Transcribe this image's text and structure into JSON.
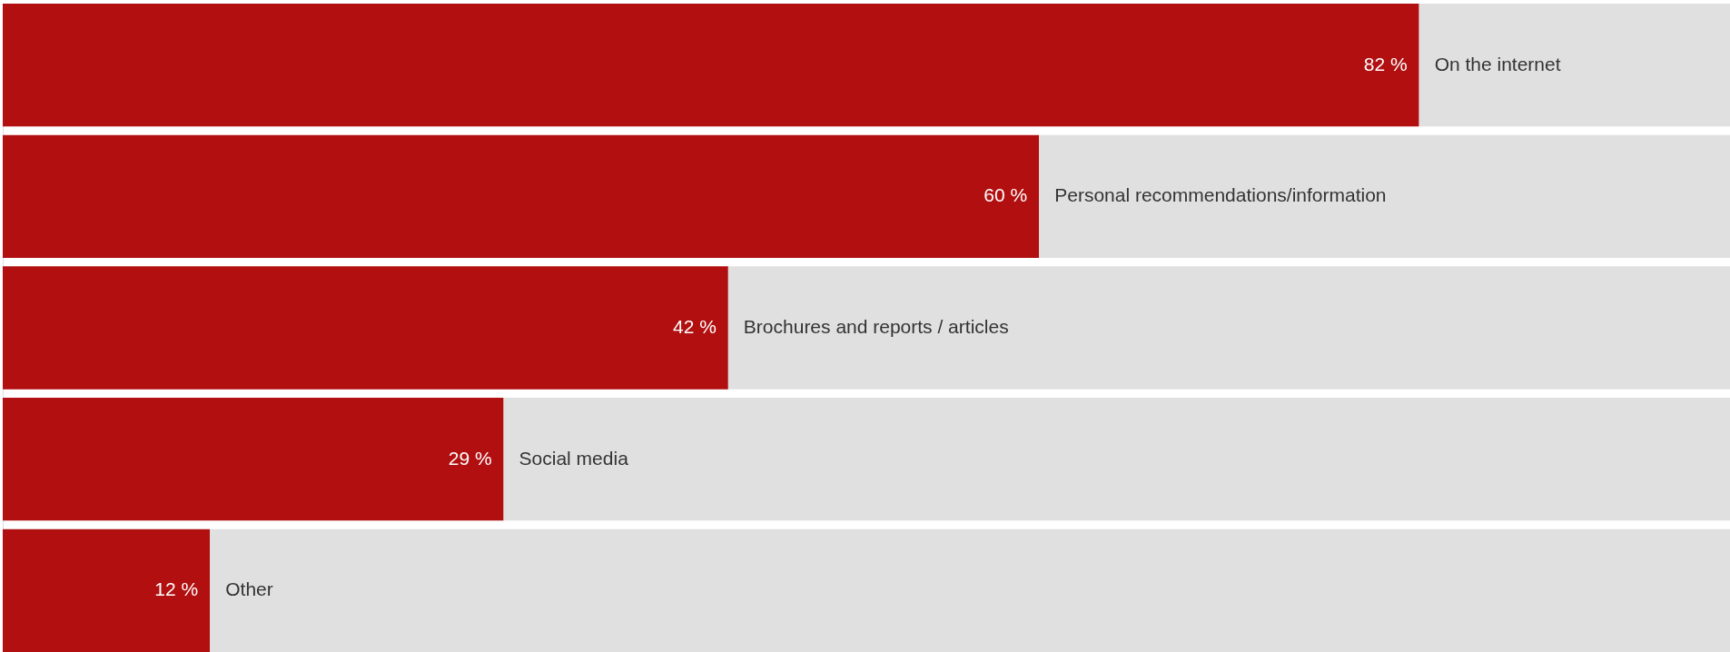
{
  "chart_data": {
    "type": "bar",
    "orientation": "horizontal",
    "stacked": true,
    "xlim": [
      0,
      100
    ],
    "tick_labels": false,
    "categories": [
      "On the internet",
      "Personal recommendations/information",
      "Brochures and reports / articles",
      "Social media",
      "Other"
    ],
    "series": [
      {
        "color": "#b10f10",
        "values": [
          82,
          60,
          42,
          29,
          12
        ],
        "value_labels": [
          "82 %",
          "60 %",
          "42 %",
          "29 %",
          "12 %"
        ]
      },
      {
        "color": "#e0e0e0",
        "values": [
          18,
          40,
          58,
          71,
          88
        ]
      }
    ]
  }
}
